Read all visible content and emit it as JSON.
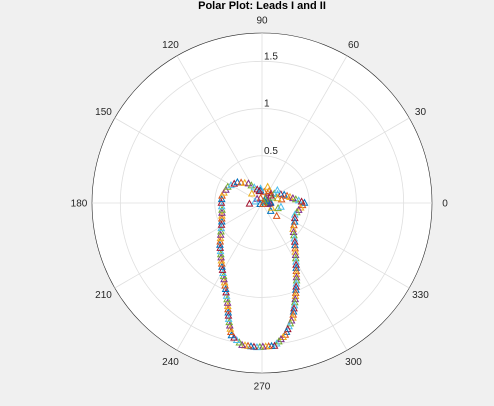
{
  "chart_data": {
    "type": "scatter",
    "coordinate_system": "polar",
    "title": "Polar Plot: Leads I and II",
    "marker": "triangle",
    "grid": true,
    "r_ticks": [
      "0.5",
      "1",
      "1.5"
    ],
    "r_values": [
      0.5,
      1.0,
      1.5
    ],
    "r_lim": [
      0,
      1.8
    ],
    "theta_ticks": [
      "0",
      "30",
      "60",
      "90",
      "120",
      "150",
      "180",
      "210",
      "240",
      "270",
      "300",
      "330"
    ],
    "theta_values": [
      0,
      30,
      60,
      90,
      120,
      150,
      180,
      210,
      240,
      270,
      300,
      330
    ],
    "colors": [
      "#0072bd",
      "#d95319",
      "#edb120",
      "#7e2f8e",
      "#77ac30",
      "#4dbeee",
      "#a2142f"
    ],
    "series": [
      {
        "points": [
          {
            "theta": 0,
            "r": 0.45
          },
          {
            "theta": 340,
            "r": 0.37
          },
          {
            "theta": 330,
            "r": 0.4
          },
          {
            "theta": 320,
            "r": 0.43
          },
          {
            "theta": 310,
            "r": 0.54
          },
          {
            "theta": 300,
            "r": 0.72
          },
          {
            "theta": 294,
            "r": 0.9
          },
          {
            "theta": 289,
            "r": 1.08
          },
          {
            "theta": 285,
            "r": 1.26
          },
          {
            "theta": 280,
            "r": 1.42
          },
          {
            "theta": 275,
            "r": 1.52
          },
          {
            "theta": 268,
            "r": 1.53
          },
          {
            "theta": 262,
            "r": 1.52
          },
          {
            "theta": 257,
            "r": 1.44
          },
          {
            "theta": 254,
            "r": 1.28
          },
          {
            "theta": 251,
            "r": 1.12
          },
          {
            "theta": 246,
            "r": 0.96
          },
          {
            "theta": 238,
            "r": 0.8
          },
          {
            "theta": 225,
            "r": 0.63
          },
          {
            "theta": 205,
            "r": 0.47
          },
          {
            "theta": 190,
            "r": 0.43
          },
          {
            "theta": 180,
            "r": 0.43
          },
          {
            "theta": 170,
            "r": 0.43
          },
          {
            "theta": 155,
            "r": 0.4
          },
          {
            "theta": 140,
            "r": 0.34
          },
          {
            "theta": 125,
            "r": 0.25
          },
          {
            "theta": 110,
            "r": 0.15
          },
          {
            "theta": 60,
            "r": 0.12
          },
          {
            "theta": 20,
            "r": 0.25
          }
        ]
      }
    ]
  }
}
